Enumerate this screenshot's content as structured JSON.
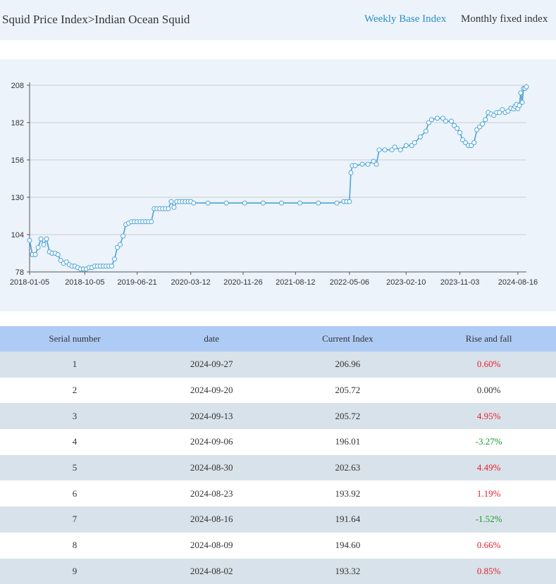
{
  "header": {
    "breadcrumb": "Squid Price Index>Indian Ocean Squid",
    "tabs": [
      {
        "label": "Weekly Base Index",
        "active": true
      },
      {
        "label": "Monthly fixed index",
        "active": false
      }
    ]
  },
  "colors": {
    "line": "#4aa3d8",
    "marker_fill": "#ffffff",
    "rise": "#e8202a",
    "fall": "#1a9a2a",
    "header_bg": "#edf3fa",
    "table_header_bg": "#aecbf5"
  },
  "chart_data": {
    "type": "line",
    "y_ticks": [
      "78",
      "104",
      "130",
      "156",
      "182",
      "208"
    ],
    "ylim": [
      78,
      208
    ],
    "x_ticks": [
      "2018-01-05",
      "2018-10-05",
      "2019-06-21",
      "2020-03-12",
      "2020-11-26",
      "2021-08-12",
      "2022-05-06",
      "2023-02-10",
      "2023-11-03",
      "2024-08-16"
    ],
    "xlim": [
      "2018-01-05",
      "2024-09-27"
    ],
    "grid": true,
    "markers": "hollow-circle",
    "series": [
      {
        "points": [
          [
            "2018-01-05",
            100
          ],
          [
            "2018-01-19",
            90
          ],
          [
            "2018-02-02",
            90
          ],
          [
            "2018-02-16",
            95
          ],
          [
            "2018-03-02",
            101
          ],
          [
            "2018-03-16",
            97
          ],
          [
            "2018-03-30",
            101
          ],
          [
            "2018-04-13",
            92
          ],
          [
            "2018-04-27",
            91
          ],
          [
            "2018-05-11",
            91
          ],
          [
            "2018-05-25",
            90
          ],
          [
            "2018-06-08",
            86
          ],
          [
            "2018-06-22",
            84
          ],
          [
            "2018-07-06",
            85
          ],
          [
            "2018-07-20",
            83
          ],
          [
            "2018-08-03",
            82
          ],
          [
            "2018-08-17",
            82
          ],
          [
            "2018-08-31",
            81
          ],
          [
            "2018-09-14",
            80
          ],
          [
            "2018-09-28",
            80
          ],
          [
            "2018-10-12",
            80
          ],
          [
            "2018-10-26",
            81
          ],
          [
            "2018-11-09",
            81
          ],
          [
            "2018-11-23",
            82
          ],
          [
            "2018-12-07",
            82
          ],
          [
            "2018-12-21",
            82
          ],
          [
            "2019-01-04",
            82
          ],
          [
            "2019-01-18",
            82
          ],
          [
            "2019-02-01",
            82
          ],
          [
            "2019-02-15",
            82
          ],
          [
            "2019-03-01",
            87
          ],
          [
            "2019-03-15",
            95
          ],
          [
            "2019-03-29",
            97
          ],
          [
            "2019-04-12",
            103
          ],
          [
            "2019-04-26",
            111
          ],
          [
            "2019-05-10",
            112
          ],
          [
            "2019-05-24",
            113
          ],
          [
            "2019-06-07",
            113
          ],
          [
            "2019-06-21",
            113
          ],
          [
            "2019-07-05",
            113
          ],
          [
            "2019-07-19",
            113
          ],
          [
            "2019-08-02",
            113
          ],
          [
            "2019-08-16",
            113
          ],
          [
            "2019-08-30",
            113
          ],
          [
            "2019-09-13",
            122
          ],
          [
            "2019-09-27",
            122
          ],
          [
            "2019-10-11",
            122
          ],
          [
            "2019-10-25",
            122
          ],
          [
            "2019-11-08",
            122
          ],
          [
            "2019-11-22",
            122
          ],
          [
            "2019-12-06",
            127
          ],
          [
            "2019-12-20",
            123
          ],
          [
            "2020-01-03",
            127
          ],
          [
            "2020-01-17",
            127
          ],
          [
            "2020-01-31",
            127
          ],
          [
            "2020-02-14",
            127
          ],
          [
            "2020-02-28",
            127
          ],
          [
            "2020-03-12",
            127
          ],
          [
            "2020-03-26",
            126
          ],
          [
            "2020-06-05",
            126
          ],
          [
            "2020-09-04",
            126
          ],
          [
            "2020-12-04",
            126
          ],
          [
            "2021-03-05",
            126
          ],
          [
            "2021-06-04",
            126
          ],
          [
            "2021-09-03",
            126
          ],
          [
            "2021-12-03",
            126
          ],
          [
            "2022-03-04",
            126
          ],
          [
            "2022-04-08",
            127
          ],
          [
            "2022-04-22",
            127
          ],
          [
            "2022-05-06",
            127
          ],
          [
            "2022-05-13",
            147
          ],
          [
            "2022-05-20",
            152
          ],
          [
            "2022-06-03",
            152
          ],
          [
            "2022-07-08",
            153
          ],
          [
            "2022-08-05",
            153
          ],
          [
            "2022-09-02",
            155
          ],
          [
            "2022-09-16",
            153
          ],
          [
            "2022-09-30",
            163
          ],
          [
            "2022-10-28",
            163
          ],
          [
            "2022-12-02",
            163
          ],
          [
            "2022-12-16",
            165
          ],
          [
            "2023-01-13",
            163
          ],
          [
            "2023-02-10",
            166
          ],
          [
            "2023-03-10",
            166
          ],
          [
            "2023-03-24",
            168
          ],
          [
            "2023-04-21",
            172
          ],
          [
            "2023-05-19",
            176
          ],
          [
            "2023-06-02",
            182
          ],
          [
            "2023-06-16",
            184
          ],
          [
            "2023-07-14",
            185
          ],
          [
            "2023-08-11",
            185
          ],
          [
            "2023-08-25",
            183
          ],
          [
            "2023-09-22",
            183
          ],
          [
            "2023-10-06",
            180
          ],
          [
            "2023-10-20",
            178
          ],
          [
            "2023-11-03",
            175
          ],
          [
            "2023-11-17",
            170
          ],
          [
            "2023-12-01",
            168
          ],
          [
            "2023-12-15",
            166
          ],
          [
            "2023-12-29",
            166
          ],
          [
            "2024-01-12",
            168
          ],
          [
            "2024-01-26",
            177
          ],
          [
            "2024-02-09",
            179
          ],
          [
            "2024-02-23",
            181
          ],
          [
            "2024-03-08",
            184
          ],
          [
            "2024-03-22",
            189
          ],
          [
            "2024-04-05",
            188
          ],
          [
            "2024-04-19",
            187
          ],
          [
            "2024-05-03",
            189
          ],
          [
            "2024-05-17",
            189
          ],
          [
            "2024-05-31",
            191
          ],
          [
            "2024-06-14",
            189
          ],
          [
            "2024-06-28",
            190
          ],
          [
            "2024-07-12",
            192
          ],
          [
            "2024-07-26",
            191.51
          ],
          [
            "2024-08-02",
            193.32
          ],
          [
            "2024-08-09",
            194.6
          ],
          [
            "2024-08-16",
            191.64
          ],
          [
            "2024-08-23",
            193.92
          ],
          [
            "2024-08-30",
            202.63
          ],
          [
            "2024-09-06",
            196.01
          ],
          [
            "2024-09-13",
            205.72
          ],
          [
            "2024-09-20",
            205.72
          ],
          [
            "2024-09-27",
            206.96
          ]
        ]
      }
    ]
  },
  "table": {
    "columns": [
      "Serial number",
      "date",
      "Current Index",
      "Rise and fall"
    ],
    "rows": [
      {
        "serial": "1",
        "date": "2024-09-27",
        "index": "206.96",
        "change": "0.60%",
        "trend": "up"
      },
      {
        "serial": "2",
        "date": "2024-09-20",
        "index": "205.72",
        "change": "0.00%",
        "trend": "flat"
      },
      {
        "serial": "3",
        "date": "2024-09-13",
        "index": "205.72",
        "change": "4.95%",
        "trend": "up"
      },
      {
        "serial": "4",
        "date": "2024-09-06",
        "index": "196.01",
        "change": "-3.27%",
        "trend": "down"
      },
      {
        "serial": "5",
        "date": "2024-08-30",
        "index": "202.63",
        "change": "4.49%",
        "trend": "up"
      },
      {
        "serial": "6",
        "date": "2024-08-23",
        "index": "193.92",
        "change": "1.19%",
        "trend": "up"
      },
      {
        "serial": "7",
        "date": "2024-08-16",
        "index": "191.64",
        "change": "-1.52%",
        "trend": "down"
      },
      {
        "serial": "8",
        "date": "2024-08-09",
        "index": "194.60",
        "change": "0.66%",
        "trend": "up"
      },
      {
        "serial": "9",
        "date": "2024-08-02",
        "index": "193.32",
        "change": "0.85%",
        "trend": "up"
      }
    ]
  }
}
